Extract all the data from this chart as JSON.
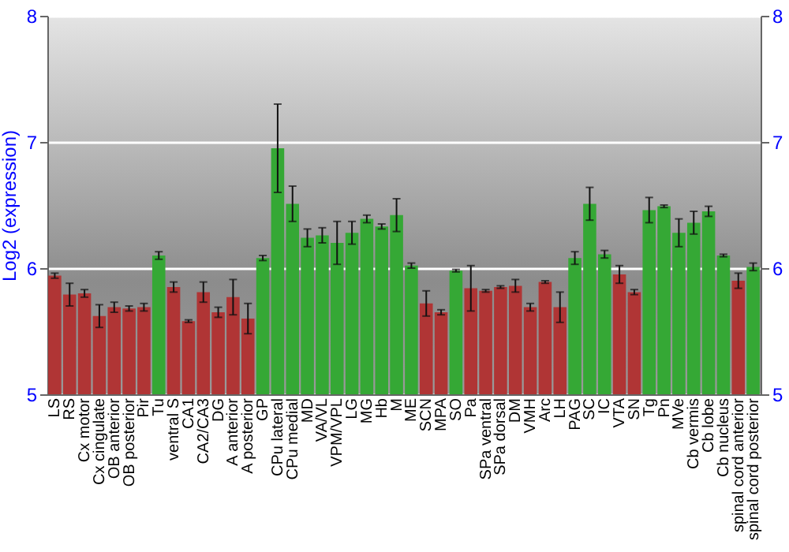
{
  "chart_data": {
    "type": "bar",
    "ylabel": "Log2 (expression)",
    "categories": [
      "LS",
      "RS",
      "Cx motor",
      "Cx cingulate",
      "OB anterior",
      "OB posterior",
      "Pir",
      "Tu",
      "ventral S",
      "CA1",
      "CA2/CA3",
      "DG",
      "A anterior",
      "A posterior",
      "GP",
      "CPu lateral",
      "CPu medial",
      "MD",
      "VA/VL",
      "VPM/VPL",
      "LG",
      "MG",
      "Hb",
      "M",
      "ME",
      "SCN",
      "MPA",
      "SO",
      "Pa",
      "SPa ventral",
      "SPa dorsal",
      "DM",
      "VMH",
      "Arc",
      "LH",
      "PAG",
      "SC",
      "IC",
      "VTA",
      "SN",
      "Tg",
      "Pn",
      "MVe",
      "Cb vermis",
      "Cb lobe",
      "Cb nucleus",
      "spinal cord anterior",
      "spinal cord posterior"
    ],
    "values": [
      5.94,
      5.79,
      5.8,
      5.62,
      5.69,
      5.68,
      5.69,
      6.1,
      5.85,
      5.58,
      5.81,
      5.65,
      5.77,
      5.6,
      6.08,
      6.95,
      6.51,
      6.24,
      6.26,
      6.2,
      6.28,
      6.39,
      6.33,
      6.42,
      6.02,
      5.72,
      5.65,
      5.98,
      5.84,
      5.82,
      5.85,
      5.86,
      5.69,
      5.89,
      5.69,
      6.08,
      6.51,
      6.11,
      5.95,
      5.81,
      6.46,
      6.49,
      6.28,
      6.36,
      6.45,
      6.1,
      5.9,
      6.01
    ],
    "errors": [
      0.02,
      0.09,
      0.03,
      0.09,
      0.04,
      0.02,
      0.03,
      0.03,
      0.04,
      0.01,
      0.08,
      0.04,
      0.14,
      0.12,
      0.02,
      0.35,
      0.14,
      0.07,
      0.06,
      0.17,
      0.09,
      0.03,
      0.02,
      0.13,
      0.02,
      0.1,
      0.02,
      0.01,
      0.18,
      0.01,
      0.01,
      0.05,
      0.03,
      0.01,
      0.12,
      0.05,
      0.13,
      0.03,
      0.07,
      0.02,
      0.1,
      0.01,
      0.11,
      0.09,
      0.04,
      0.01,
      0.06,
      0.03
    ],
    "colors": [
      "#b03535",
      "#b03535",
      "#b03535",
      "#b03535",
      "#b03535",
      "#b03535",
      "#b03535",
      "#35a835",
      "#b03535",
      "#b03535",
      "#b03535",
      "#b03535",
      "#b03535",
      "#b03535",
      "#35a835",
      "#35a835",
      "#35a835",
      "#35a835",
      "#35a835",
      "#35a835",
      "#35a835",
      "#35a835",
      "#35a835",
      "#35a835",
      "#35a835",
      "#b03535",
      "#b03535",
      "#35a835",
      "#b03535",
      "#b03535",
      "#b03535",
      "#b03535",
      "#b03535",
      "#b03535",
      "#b03535",
      "#35a835",
      "#35a835",
      "#35a835",
      "#b03535",
      "#b03535",
      "#35a835",
      "#35a835",
      "#35a835",
      "#35a835",
      "#35a835",
      "#35a835",
      "#b03535",
      "#35a835"
    ],
    "ylim": [
      5,
      8
    ],
    "yticks": [
      5,
      6,
      7,
      8
    ],
    "y2lim": [
      5,
      8
    ],
    "y2ticks": [
      5,
      6,
      7,
      8
    ],
    "grid": "y"
  }
}
